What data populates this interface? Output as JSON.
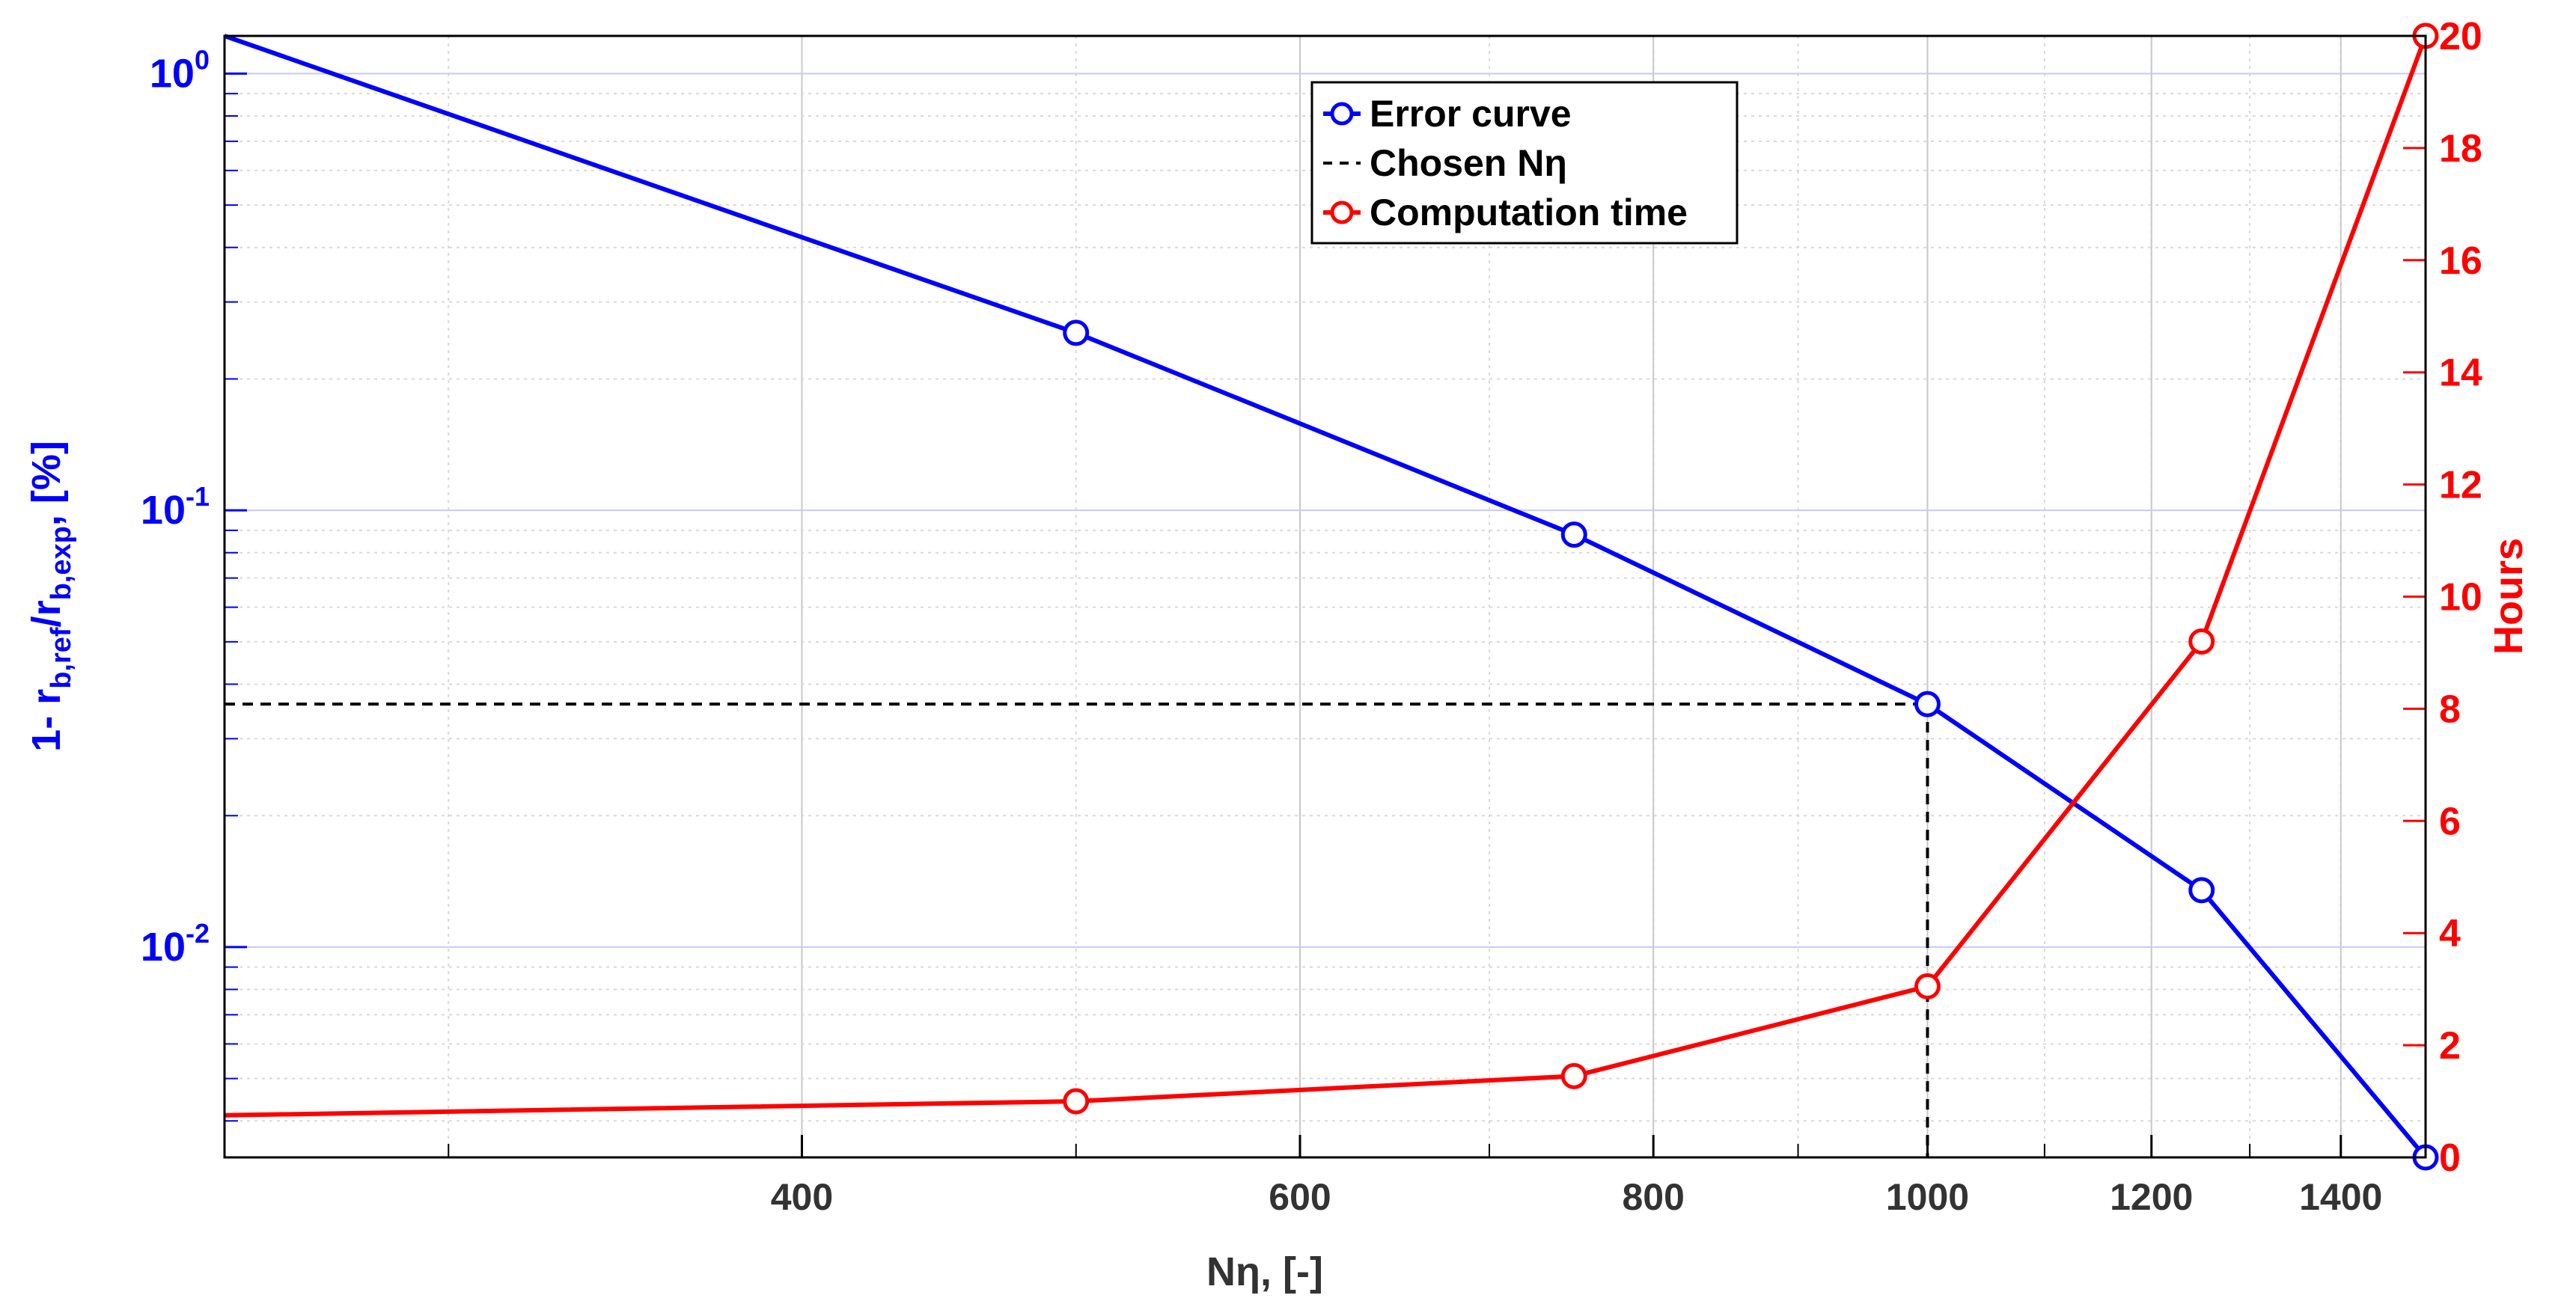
{
  "chart_data": {
    "type": "line",
    "title": "",
    "xlabel": "Nη, [-]",
    "ylabel_left": "1- r_b,ref/r_b,exp, [%]",
    "ylabel_right": "Hours",
    "x_scale": "log",
    "y_left_scale": "log",
    "y_right_scale": "linear",
    "xlim": [
      250,
      1500
    ],
    "ylim_left": [
      0.0033,
      1.22
    ],
    "ylim_right": [
      0,
      20
    ],
    "x_ticks": [
      400,
      600,
      800,
      1000,
      1200,
      1400
    ],
    "y_left_ticks": [
      {
        "value": 1.0,
        "base": "10",
        "exp": "0"
      },
      {
        "value": 0.1,
        "base": "10",
        "exp": "-1"
      },
      {
        "value": 0.01,
        "base": "10",
        "exp": "-2"
      }
    ],
    "y_right_ticks": [
      0,
      2,
      4,
      6,
      8,
      10,
      12,
      14,
      16,
      18,
      20
    ],
    "grid": true,
    "legend_position": "top-center",
    "series": [
      {
        "name": "Error curve",
        "axis": "left",
        "color": "#0000ff",
        "marker": "circle",
        "x": [
          250,
          500,
          750,
          1000,
          1250,
          1500
        ],
        "y": [
          1.22,
          0.255,
          0.088,
          0.036,
          0.0135,
          0.0033
        ],
        "marker_on_first": false
      },
      {
        "name": "Computation time",
        "axis": "right",
        "color": "#ff0000",
        "marker": "circle",
        "x": [
          250,
          500,
          750,
          1000,
          1250,
          1500
        ],
        "y": [
          0.75,
          1.0,
          1.45,
          3.05,
          9.2,
          20.0
        ],
        "marker_on_first": false
      }
    ],
    "reference": {
      "name": "Chosen Nη",
      "color": "#000000",
      "style": "dashed",
      "x": 1000,
      "y": 0.036
    },
    "legend": [
      {
        "label": "Error curve",
        "color": "#0000ff",
        "style": "line-marker"
      },
      {
        "label": "Chosen Nη",
        "color": "#000000",
        "style": "dashed"
      },
      {
        "label": "Computation time",
        "color": "#ff0000",
        "style": "line-marker"
      }
    ]
  }
}
